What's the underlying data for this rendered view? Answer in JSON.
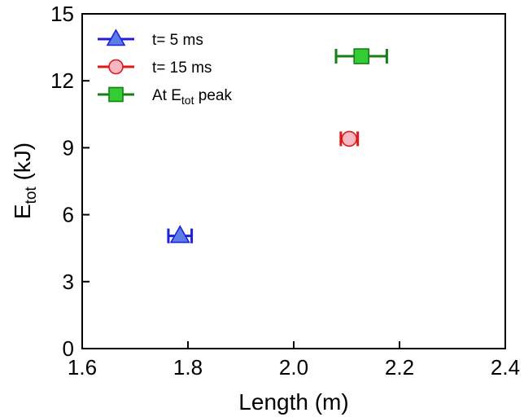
{
  "chart_data": {
    "type": "scatter",
    "title": "",
    "xlabel": "Length (m)",
    "ylabel": {
      "main": "E",
      "sub": "tot",
      "unit": " (kJ)"
    },
    "xlim": [
      1.6,
      2.4
    ],
    "ylim": [
      0,
      15
    ],
    "x_ticks": [
      "1.6",
      "1.8",
      "2.0",
      "2.2",
      "2.4"
    ],
    "y_ticks": [
      "0",
      "3",
      "6",
      "9",
      "12",
      "15"
    ],
    "grid": false,
    "legend_position": "top-left",
    "series": [
      {
        "legend": {
          "prefix": "t= 5 ms",
          "sub": "",
          "suffix": ""
        },
        "marker": "triangle",
        "color": "#1f1fe0",
        "fill": "#5b7ee8",
        "points": [
          {
            "x": 1.785,
            "y": 5.05,
            "xerr": 0.022
          }
        ]
      },
      {
        "legend": {
          "prefix": "t= 15 ms",
          "sub": "",
          "suffix": ""
        },
        "marker": "circle",
        "color": "#e01818",
        "fill": "#f7b8c4",
        "points": [
          {
            "x": 2.105,
            "y": 9.4,
            "xerr": 0.016
          }
        ]
      },
      {
        "legend": {
          "prefix": "At E",
          "sub": "tot",
          "suffix": " peak"
        },
        "marker": "square",
        "color": "#157f15",
        "fill": "#33cc33",
        "points": [
          {
            "x": 2.128,
            "y": 13.1,
            "xerr": 0.048
          }
        ]
      }
    ]
  }
}
